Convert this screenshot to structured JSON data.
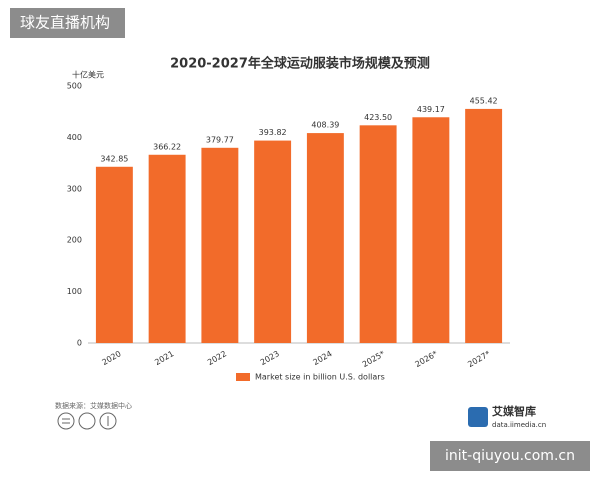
{
  "watermark": "球友直播机构",
  "site": "init-qiuyou.com.cn",
  "source": "数据来源：艾媒数据中心",
  "logo": {
    "name": "艾媒智库",
    "url": "data.iimedia.cn"
  },
  "chart_data": {
    "type": "bar",
    "title": "2020-2027年全球运动服装市场规模及预测",
    "y_label": "十亿美元",
    "categories": [
      "2020",
      "2021",
      "2022",
      "2023",
      "2024",
      "2025*",
      "2026*",
      "2027*"
    ],
    "series": [
      {
        "name": "Market size in billion U.S. dollars",
        "color": "#f26b2a",
        "values": [
          342.85,
          366.22,
          379.77,
          393.82,
          408.39,
          423.5,
          439.17,
          455.42
        ],
        "value_labels": [
          "342.85",
          "366.22",
          "379.77",
          "393.82",
          "408.39",
          "423.50",
          "439.17",
          "455.42"
        ]
      }
    ],
    "ylim": [
      0,
      500
    ],
    "yticks": [
      0,
      100,
      200,
      300,
      400,
      500
    ],
    "grid": false
  }
}
